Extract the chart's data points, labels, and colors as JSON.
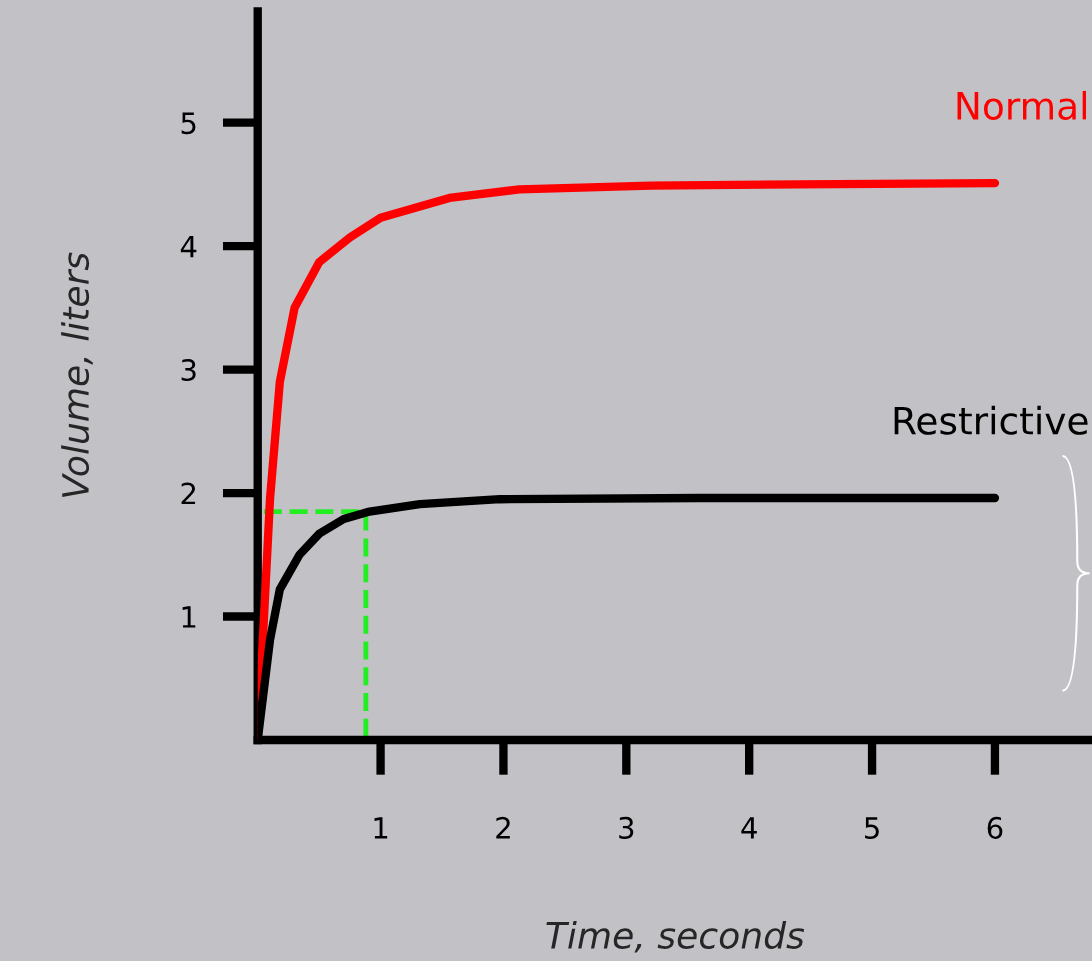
{
  "chart_data": {
    "type": "line",
    "xlabel": "Time, seconds",
    "ylabel": "Volume, liters",
    "xlim": [
      0,
      6.79
    ],
    "ylim": [
      0,
      5.9
    ],
    "xticks": [
      1,
      2,
      3,
      4,
      5,
      6
    ],
    "yticks": [
      1,
      2,
      3,
      4,
      5
    ],
    "grid": false,
    "legend": false,
    "marker": "none",
    "series": [
      {
        "name": "Normal",
        "color": "#ff0000",
        "x": [
          0,
          0.1,
          0.18,
          0.3,
          0.5,
          0.75,
          1.0,
          1.56,
          2.13,
          3.2,
          4.4,
          6
        ],
        "values": [
          0,
          1.95,
          2.9,
          3.5,
          3.87,
          4.07,
          4.23,
          4.39,
          4.46,
          4.49,
          4.5,
          4.51
        ],
        "line_style": "solid"
      },
      {
        "name": "Restrictive",
        "color": "#000000",
        "x": [
          0,
          0.1,
          0.18,
          0.34,
          0.5,
          0.7,
          0.91,
          1.32,
          1.97,
          3.6,
          6
        ],
        "values": [
          0,
          0.81,
          1.22,
          1.5,
          1.67,
          1.79,
          1.85,
          1.91,
          1.95,
          1.96,
          1.96
        ],
        "line_style": "solid"
      },
      {
        "color": "#22ee22",
        "x": [
          0.05,
          0.88,
          0.88
        ],
        "values": [
          1.85,
          1.85,
          0
        ],
        "line_style": "dashed"
      }
    ]
  }
}
